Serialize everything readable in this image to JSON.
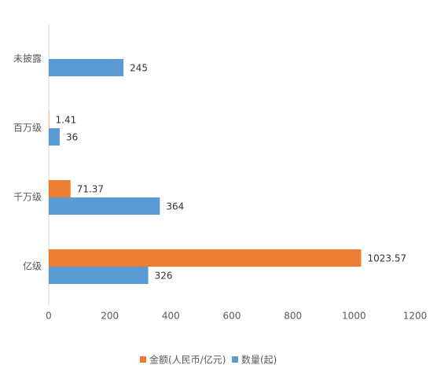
{
  "chart_data": {
    "type": "bar",
    "orientation": "horizontal",
    "categories": [
      "未披露",
      "百万级",
      "千万级",
      "亿级"
    ],
    "series": [
      {
        "name": "金额(人民币/亿元)",
        "color": "#ed7d31",
        "values": [
          null,
          1.41,
          71.37,
          1023.57
        ]
      },
      {
        "name": "数量(起)",
        "color": "#5b9bd5",
        "values": [
          245,
          36,
          364,
          326
        ]
      }
    ],
    "xlim": [
      0,
      1200
    ],
    "xticks": [
      0,
      200,
      400,
      600,
      800,
      1000,
      1200
    ],
    "grid": false,
    "legend": "bottom"
  }
}
